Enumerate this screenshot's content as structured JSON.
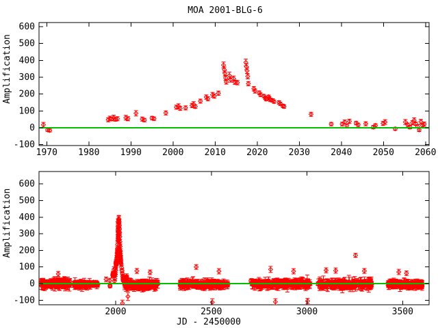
{
  "figure": {
    "title": "MOA 2001-BLG-6",
    "background": "#ffffff",
    "text_color": "#000000",
    "point_color": "#ff0000",
    "baseline_color": "#00c000",
    "axis_color": "#000000"
  },
  "chart_data": [
    {
      "id": "top-panel",
      "type": "scatter",
      "marker": "open-diamond-with-error-bars",
      "title": "MOA 2001-BLG-6",
      "xlabel": "",
      "ylabel": "Amplification",
      "xlim": [
        1968.16,
        2060.85
      ],
      "ylim": [
        -105.4,
        624.3
      ],
      "xticks": [
        1970,
        1980,
        1990,
        2000,
        2010,
        2020,
        2030,
        2040,
        2050,
        2060
      ],
      "yticks": [
        -100,
        0,
        100,
        200,
        300,
        400,
        500,
        600
      ],
      "baseline_y": 0,
      "grid": false,
      "legend": null,
      "points": [
        [
          1969.2,
          18,
          14
        ],
        [
          1970.2,
          -12,
          9
        ],
        [
          1970.7,
          -16,
          9
        ],
        [
          1984.6,
          48,
          12
        ],
        [
          1985.0,
          56,
          13
        ],
        [
          1985.4,
          52,
          10
        ],
        [
          1985.9,
          60,
          15
        ],
        [
          1986.3,
          50,
          11
        ],
        [
          1986.8,
          54,
          12
        ],
        [
          1988.8,
          60,
          14
        ],
        [
          1989.3,
          54,
          12
        ],
        [
          1991.2,
          86,
          16
        ],
        [
          1992.7,
          52,
          12
        ],
        [
          1993.2,
          46,
          10
        ],
        [
          1995.0,
          58,
          10
        ],
        [
          1995.5,
          54,
          10
        ],
        [
          1998.3,
          88,
          12
        ],
        [
          2000.8,
          122,
          12
        ],
        [
          2001.3,
          128,
          14
        ],
        [
          2001.7,
          115,
          12
        ],
        [
          2003.0,
          118,
          12
        ],
        [
          2004.5,
          132,
          13
        ],
        [
          2004.9,
          140,
          15
        ],
        [
          2005.3,
          126,
          11
        ],
        [
          2006.5,
          158,
          12
        ],
        [
          2007.9,
          182,
          13
        ],
        [
          2008.3,
          172,
          12
        ],
        [
          2009.4,
          196,
          14
        ],
        [
          2009.8,
          188,
          13
        ],
        [
          2010.8,
          205,
          13
        ],
        [
          2012.0,
          372,
          18
        ],
        [
          2012.2,
          345,
          16
        ],
        [
          2012.35,
          322,
          15
        ],
        [
          2012.5,
          296,
          14
        ],
        [
          2012.65,
          272,
          13
        ],
        [
          2013.4,
          310,
          20
        ],
        [
          2013.7,
          286,
          15
        ],
        [
          2014.4,
          292,
          15
        ],
        [
          2014.7,
          270,
          13
        ],
        [
          2015.3,
          268,
          13
        ],
        [
          2017.3,
          388,
          20
        ],
        [
          2017.45,
          362,
          17
        ],
        [
          2017.6,
          338,
          16
        ],
        [
          2017.75,
          305,
          15
        ],
        [
          2017.9,
          262,
          13
        ],
        [
          2019.2,
          232,
          13
        ],
        [
          2019.5,
          218,
          12
        ],
        [
          2020.5,
          208,
          11
        ],
        [
          2020.8,
          196,
          11
        ],
        [
          2021.6,
          188,
          10
        ],
        [
          2021.9,
          178,
          10
        ],
        [
          2022.1,
          170,
          10
        ],
        [
          2022.7,
          184,
          10
        ],
        [
          2022.9,
          174,
          10
        ],
        [
          2023.1,
          166,
          10
        ],
        [
          2023.7,
          162,
          10
        ],
        [
          2024.0,
          155,
          10
        ],
        [
          2025.2,
          150,
          10
        ],
        [
          2025.5,
          142,
          10
        ],
        [
          2026.1,
          130,
          10
        ],
        [
          2026.4,
          126,
          10
        ],
        [
          2032.8,
          80,
          12
        ],
        [
          2037.6,
          22,
          10
        ],
        [
          2040.2,
          22,
          11
        ],
        [
          2040.8,
          34,
          12
        ],
        [
          2041.3,
          12,
          10
        ],
        [
          2041.9,
          38,
          13
        ],
        [
          2043.5,
          28,
          10
        ],
        [
          2044.0,
          18,
          10
        ],
        [
          2045.8,
          24,
          12
        ],
        [
          2047.6,
          4,
          10
        ],
        [
          2048.1,
          14,
          10
        ],
        [
          2049.9,
          26,
          12
        ],
        [
          2050.4,
          34,
          14
        ],
        [
          2052.8,
          -6,
          9
        ],
        [
          2055.2,
          34,
          15
        ],
        [
          2055.8,
          18,
          10
        ],
        [
          2056.3,
          4,
          10
        ],
        [
          2056.9,
          30,
          12
        ],
        [
          2057.3,
          44,
          15
        ],
        [
          2057.7,
          24,
          10
        ],
        [
          2058.1,
          8,
          10
        ],
        [
          2058.5,
          -12,
          10
        ],
        [
          2058.9,
          36,
          14
        ],
        [
          2059.3,
          14,
          10
        ],
        [
          2059.7,
          22,
          12
        ]
      ]
    },
    {
      "id": "bottom-panel",
      "type": "scatter",
      "marker": "open-diamond-with-error-bars",
      "title": "",
      "xlabel": "JD - 2450000",
      "ylabel": "Amplification",
      "xlim": [
        1599.4,
        3638.4
      ],
      "ylim": [
        -127.6,
        674.9
      ],
      "xticks": [
        2000,
        2500,
        3000,
        3500
      ],
      "yticks": [
        -100,
        0,
        100,
        200,
        300,
        400,
        500,
        600
      ],
      "baseline_y": 0,
      "grid": false,
      "legend": null,
      "include_points_from": "top-panel",
      "points": [
        [
          1950,
          25,
          14
        ],
        [
          1993.5,
          15,
          12
        ],
        [
          1996,
          30,
          12
        ],
        [
          1999,
          55,
          12
        ],
        [
          2001,
          80,
          14
        ],
        [
          2003,
          110,
          14
        ],
        [
          2005,
          140,
          15
        ],
        [
          2006,
          150,
          15
        ],
        [
          2007,
          170,
          15
        ],
        [
          2008,
          185,
          16
        ],
        [
          2009,
          210,
          16
        ],
        [
          2010,
          235,
          16
        ],
        [
          2011,
          260,
          16
        ],
        [
          2012.8,
          315,
          18
        ],
        [
          2013.9,
          335,
          18
        ],
        [
          2015,
          365,
          20
        ],
        [
          2016,
          382,
          20
        ],
        [
          2016.5,
          390,
          20
        ],
        [
          2018.4,
          372,
          18
        ],
        [
          2019,
          352,
          18
        ],
        [
          2020,
          330,
          16
        ],
        [
          2021,
          308,
          16
        ],
        [
          2022,
          282,
          16
        ],
        [
          2023,
          252,
          15
        ],
        [
          2024,
          224,
          15
        ],
        [
          2025,
          196,
          14
        ],
        [
          2026.6,
          168,
          14
        ],
        [
          2028,
          142,
          13
        ],
        [
          2029.5,
          118,
          13
        ],
        [
          2031,
          96,
          12
        ],
        [
          2033,
          78,
          12
        ],
        [
          2035,
          58,
          12
        ],
        [
          2036.5,
          44,
          12
        ],
        [
          2038,
          34,
          11
        ],
        [
          2040,
          26,
          11
        ],
        [
          2042,
          20,
          10
        ],
        [
          2044.5,
          14,
          10
        ],
        [
          2035.5,
          -118,
          18
        ],
        [
          2064,
          -78,
          24
        ],
        [
          2505,
          -112,
          20
        ],
        [
          2835,
          -110,
          18
        ],
        [
          3003,
          -105,
          16
        ],
        [
          1700,
          58,
          15
        ],
        [
          2111,
          76,
          15
        ],
        [
          2180,
          68,
          14
        ],
        [
          2421,
          100,
          14
        ],
        [
          2540,
          74,
          16
        ],
        [
          2810,
          85,
          18
        ],
        [
          2930,
          74,
          16
        ],
        [
          3100,
          80,
          15
        ],
        [
          3150,
          78,
          16
        ],
        [
          3254,
          170,
          12
        ],
        [
          3300,
          76,
          15
        ],
        [
          3480,
          70,
          16
        ],
        [
          3520,
          62,
          14
        ]
      ],
      "noise_clusters": [
        {
          "x0": 1610,
          "x1": 1762,
          "n": 160,
          "mean": 0,
          "spread": 17,
          "err_min": 8,
          "err_max": 26
        },
        {
          "x0": 1780,
          "x1": 1868,
          "n": 95,
          "mean": -4,
          "spread": 14,
          "err_min": 8,
          "err_max": 22
        },
        {
          "x0": 1882,
          "x1": 1910,
          "n": 20,
          "mean": -2,
          "spread": 12,
          "err_min": 8,
          "err_max": 18
        },
        {
          "x0": 2046,
          "x1": 2222,
          "n": 210,
          "mean": -6,
          "spread": 18,
          "err_min": 8,
          "err_max": 28
        },
        {
          "x0": 2336,
          "x1": 2588,
          "n": 220,
          "mean": -4,
          "spread": 16,
          "err_min": 8,
          "err_max": 26
        },
        {
          "x0": 2706,
          "x1": 3018,
          "n": 230,
          "mean": -2,
          "spread": 18,
          "err_min": 8,
          "err_max": 28
        },
        {
          "x0": 3056,
          "x1": 3338,
          "n": 210,
          "mean": -4,
          "spread": 18,
          "err_min": 8,
          "err_max": 28
        },
        {
          "x0": 3424,
          "x1": 3602,
          "n": 175,
          "mean": -3,
          "spread": 16,
          "err_min": 8,
          "err_max": 24
        }
      ],
      "seed": 7
    }
  ]
}
